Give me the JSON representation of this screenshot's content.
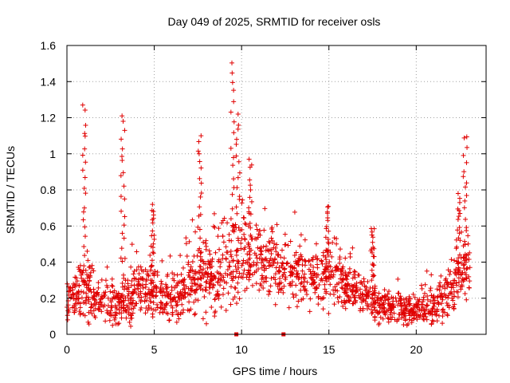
{
  "chart_data": {
    "type": "scatter",
    "title": "Day 049 of 2025, SRMTID for receiver osls",
    "xlabel": "GPS time / hours",
    "ylabel": "SRMTID / TECUs",
    "xlim": [
      0,
      24
    ],
    "ylim": [
      0,
      1.6
    ],
    "xticks": [
      0,
      5,
      10,
      15,
      20
    ],
    "yticks": [
      0,
      0.2,
      0.4,
      0.6,
      0.8,
      1,
      1.2,
      1.4,
      1.6
    ],
    "xtick_labels": [
      "0",
      "5",
      "10",
      "15",
      "20"
    ],
    "ytick_labels": [
      "0",
      "0.2",
      "0.4",
      "0.6",
      "0.8",
      "1",
      "1.2",
      "1.4",
      "1.6"
    ],
    "grid": true,
    "marker": "+",
    "color": "#e00000",
    "series_name": "SRMTID",
    "envelope": {
      "hours": [
        0,
        0.5,
        1,
        1.5,
        2,
        2.5,
        3,
        3.5,
        4,
        4.5,
        5,
        5.5,
        6,
        6.5,
        7,
        7.5,
        8,
        8.5,
        9,
        9.5,
        10,
        10.5,
        11,
        11.5,
        12,
        12.5,
        13,
        13.5,
        14,
        14.5,
        15,
        15.5,
        16,
        16.5,
        17,
        17.5,
        18,
        18.5,
        19,
        19.5,
        20,
        20.5,
        21,
        21.5,
        22,
        22.5,
        23
      ],
      "typical": [
        0.2,
        0.22,
        0.24,
        0.22,
        0.18,
        0.17,
        0.16,
        0.2,
        0.24,
        0.26,
        0.24,
        0.2,
        0.19,
        0.22,
        0.28,
        0.3,
        0.3,
        0.32,
        0.38,
        0.4,
        0.44,
        0.42,
        0.4,
        0.38,
        0.36,
        0.34,
        0.33,
        0.33,
        0.32,
        0.3,
        0.32,
        0.3,
        0.28,
        0.25,
        0.2,
        0.18,
        0.16,
        0.15,
        0.14,
        0.14,
        0.13,
        0.14,
        0.16,
        0.2,
        0.24,
        0.3,
        0.35
      ],
      "spread": [
        0.14,
        0.16,
        0.2,
        0.16,
        0.12,
        0.12,
        0.14,
        0.16,
        0.18,
        0.18,
        0.16,
        0.14,
        0.14,
        0.16,
        0.2,
        0.2,
        0.2,
        0.22,
        0.26,
        0.28,
        0.26,
        0.24,
        0.22,
        0.2,
        0.2,
        0.2,
        0.18,
        0.18,
        0.18,
        0.18,
        0.2,
        0.18,
        0.16,
        0.14,
        0.12,
        0.12,
        0.1,
        0.1,
        0.1,
        0.1,
        0.1,
        0.1,
        0.12,
        0.14,
        0.16,
        0.2,
        0.2
      ]
    },
    "bursts": [
      {
        "hour": 1.0,
        "peak": 1.27
      },
      {
        "hour": 3.2,
        "peak": 1.21
      },
      {
        "hour": 4.9,
        "peak": 0.72
      },
      {
        "hour": 7.6,
        "peak": 1.1
      },
      {
        "hour": 9.5,
        "peak": 1.51
      },
      {
        "hour": 9.8,
        "peak": 1.22
      },
      {
        "hour": 10.5,
        "peak": 0.97
      },
      {
        "hour": 14.9,
        "peak": 0.72
      },
      {
        "hour": 17.5,
        "peak": 0.6
      },
      {
        "hour": 22.4,
        "peak": 0.78
      },
      {
        "hour": 22.8,
        "peak": 1.11
      }
    ],
    "zero_points": [
      9.7,
      12.4
    ]
  }
}
